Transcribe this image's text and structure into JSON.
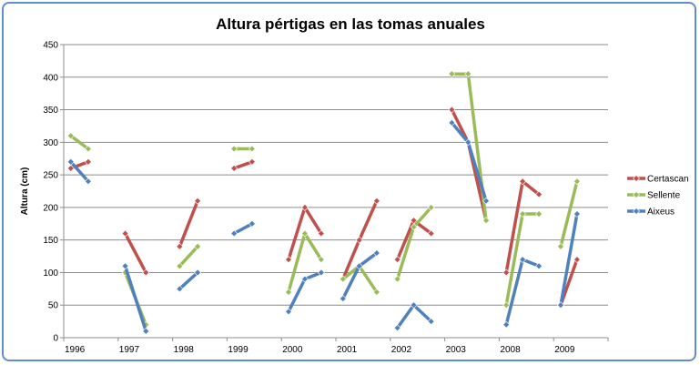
{
  "chart_data": {
    "type": "line",
    "title": "Altura pértigas en las tomas anuales",
    "xlabel": "",
    "ylabel": "Altura (cm)",
    "ylim": [
      0,
      450
    ],
    "yticks": [
      0,
      50,
      100,
      150,
      200,
      250,
      300,
      350,
      400,
      450
    ],
    "grid": true,
    "legend_position": "right",
    "categories": [
      "1996",
      "1997",
      "1998",
      "1999",
      "2000",
      "2001",
      "2002",
      "2003",
      "2008",
      "2009"
    ],
    "series": [
      {
        "name": "Certascan",
        "color": "#c0504d",
        "segments": [
          [
            [
              "1996",
              0.0,
              260
            ],
            [
              "1996",
              0.32,
              270
            ]
          ],
          [
            [
              "1997",
              0.0,
              160
            ],
            [
              "1997",
              0.38,
              100
            ]
          ],
          [
            [
              "1998",
              0.0,
              140
            ],
            [
              "1998",
              0.33,
              210
            ]
          ],
          [
            [
              "1999",
              0.0,
              260
            ],
            [
              "1999",
              0.33,
              270
            ]
          ],
          [
            [
              "2000",
              0.0,
              120
            ],
            [
              "2000",
              0.3,
              200
            ],
            [
              "2000",
              0.6,
              160
            ]
          ],
          [
            [
              "2001",
              0.0,
              90
            ],
            [
              "2001",
              0.3,
              150
            ],
            [
              "2001",
              0.62,
              210
            ]
          ],
          [
            [
              "2002",
              0.0,
              120
            ],
            [
              "2002",
              0.3,
              180
            ],
            [
              "2002",
              0.62,
              160
            ]
          ],
          [
            [
              "2003",
              0.0,
              350
            ],
            [
              "2003",
              0.3,
              300
            ],
            [
              "2003",
              0.63,
              180
            ]
          ],
          [
            [
              "2008",
              0.0,
              100
            ],
            [
              "2008",
              0.3,
              240
            ],
            [
              "2008",
              0.6,
              220
            ]
          ],
          [
            [
              "2009",
              0.0,
              50
            ],
            [
              "2009",
              0.3,
              120
            ]
          ]
        ]
      },
      {
        "name": "Sellente",
        "color": "#9bbb59",
        "segments": [
          [
            [
              "1996",
              0.0,
              310
            ],
            [
              "1996",
              0.32,
              290
            ]
          ],
          [
            [
              "1997",
              0.0,
              100
            ],
            [
              "1997",
              0.38,
              20
            ]
          ],
          [
            [
              "1998",
              0.0,
              110
            ],
            [
              "1998",
              0.33,
              140
            ]
          ],
          [
            [
              "1999",
              0.0,
              290
            ],
            [
              "1999",
              0.33,
              290
            ]
          ],
          [
            [
              "2000",
              0.0,
              70
            ],
            [
              "2000",
              0.3,
              160
            ],
            [
              "2000",
              0.6,
              120
            ]
          ],
          [
            [
              "2001",
              0.0,
              90
            ],
            [
              "2001",
              0.3,
              110
            ],
            [
              "2001",
              0.62,
              70
            ]
          ],
          [
            [
              "2002",
              0.0,
              90
            ],
            [
              "2002",
              0.3,
              170
            ],
            [
              "2002",
              0.62,
              200
            ]
          ],
          [
            [
              "2003",
              0.0,
              405
            ],
            [
              "2003",
              0.3,
              405
            ],
            [
              "2003",
              0.63,
              180
            ]
          ],
          [
            [
              "2008",
              0.0,
              50
            ],
            [
              "2008",
              0.3,
              190
            ],
            [
              "2008",
              0.6,
              190
            ]
          ],
          [
            [
              "2009",
              0.0,
              140
            ],
            [
              "2009",
              0.3,
              240
            ]
          ]
        ]
      },
      {
        "name": "Aixeus",
        "color": "#4f81bd",
        "segments": [
          [
            [
              "1996",
              0.0,
              270
            ],
            [
              "1996",
              0.32,
              240
            ]
          ],
          [
            [
              "1997",
              0.0,
              110
            ],
            [
              "1997",
              0.38,
              10
            ]
          ],
          [
            [
              "1998",
              0.0,
              75
            ],
            [
              "1998",
              0.33,
              100
            ]
          ],
          [
            [
              "1999",
              0.0,
              160
            ],
            [
              "1999",
              0.33,
              175
            ]
          ],
          [
            [
              "2000",
              0.0,
              40
            ],
            [
              "2000",
              0.3,
              90
            ],
            [
              "2000",
              0.6,
              100
            ]
          ],
          [
            [
              "2001",
              0.0,
              60
            ],
            [
              "2001",
              0.3,
              110
            ],
            [
              "2001",
              0.62,
              130
            ]
          ],
          [
            [
              "2002",
              0.0,
              15
            ],
            [
              "2002",
              0.3,
              50
            ],
            [
              "2002",
              0.62,
              25
            ]
          ],
          [
            [
              "2003",
              0.0,
              330
            ],
            [
              "2003",
              0.3,
              300
            ],
            [
              "2003",
              0.63,
              210
            ]
          ],
          [
            [
              "2008",
              0.0,
              20
            ],
            [
              "2008",
              0.3,
              120
            ],
            [
              "2008",
              0.6,
              110
            ]
          ],
          [
            [
              "2009",
              0.0,
              50
            ],
            [
              "2009",
              0.3,
              190
            ]
          ]
        ]
      }
    ]
  }
}
